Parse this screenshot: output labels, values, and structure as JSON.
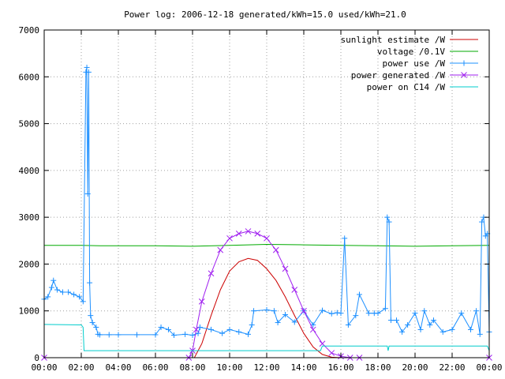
{
  "chart_data": {
    "type": "line",
    "title": "Power log: 2006-12-18 generated/kWh=15.0 used/kWh=21.0",
    "xlabel": "",
    "ylabel": "",
    "xlim": [
      0,
      24
    ],
    "ylim": [
      0,
      7000
    ],
    "x_ticks": [
      "00:00",
      "02:00",
      "04:00",
      "06:00",
      "08:00",
      "10:00",
      "12:00",
      "14:00",
      "16:00",
      "18:00",
      "20:00",
      "22:00",
      "00:00"
    ],
    "y_ticks": [
      "0",
      "1000",
      "2000",
      "3000",
      "4000",
      "5000",
      "6000",
      "7000"
    ],
    "grid": true,
    "legend_position": "top-right",
    "series": [
      {
        "name": "sunlight estimate /W",
        "color": "#cc0000",
        "marker": "none",
        "x": [
          8.1,
          8.5,
          9.0,
          9.5,
          10.0,
          10.5,
          11.0,
          11.5,
          12.0,
          12.5,
          13.0,
          13.5,
          14.0,
          14.5,
          15.0,
          15.5,
          16.0
        ],
        "y": [
          0,
          300,
          900,
          1450,
          1850,
          2050,
          2120,
          2080,
          1900,
          1650,
          1300,
          900,
          520,
          230,
          70,
          10,
          0
        ]
      },
      {
        "name": "voltage /0.1V",
        "color": "#00aa00",
        "marker": "none",
        "x": [
          0.0,
          2.0,
          3.0,
          6.0,
          8.0,
          10.0,
          12.0,
          14.0,
          16.0,
          18.0,
          20.0,
          22.0,
          24.0
        ],
        "y": [
          2400,
          2400,
          2390,
          2390,
          2380,
          2400,
          2420,
          2410,
          2400,
          2390,
          2380,
          2390,
          2400
        ]
      },
      {
        "name": "power use /W",
        "color": "#1e90ff",
        "marker": "plus",
        "x": [
          0.0,
          0.2,
          0.4,
          0.5,
          0.7,
          1.0,
          1.3,
          1.6,
          1.9,
          2.1,
          2.25,
          2.3,
          2.35,
          2.4,
          2.45,
          2.5,
          2.6,
          2.8,
          2.9,
          3.0,
          3.5,
          4.0,
          5.0,
          6.0,
          6.3,
          6.7,
          7.0,
          7.6,
          8.0,
          8.3,
          8.4,
          9.0,
          9.6,
          10.0,
          10.5,
          11.0,
          11.2,
          11.3,
          12.0,
          12.4,
          12.6,
          13.0,
          13.5,
          14.0,
          14.5,
          15.0,
          15.5,
          15.8,
          16.0,
          16.2,
          16.4,
          16.8,
          17.0,
          17.5,
          17.8,
          18.0,
          18.4,
          18.5,
          18.6,
          18.7,
          19.0,
          19.3,
          19.6,
          20.0,
          20.3,
          20.5,
          20.8,
          21.0,
          21.5,
          22.0,
          22.5,
          23.0,
          23.3,
          23.5,
          23.6,
          23.7,
          23.8,
          23.9,
          24.0
        ],
        "y": [
          1250,
          1300,
          1500,
          1650,
          1450,
          1400,
          1400,
          1350,
          1300,
          1200,
          6100,
          6200,
          3500,
          6100,
          1600,
          900,
          750,
          650,
          500,
          490,
          490,
          490,
          490,
          490,
          650,
          600,
          480,
          500,
          480,
          520,
          650,
          600,
          520,
          600,
          550,
          500,
          700,
          1000,
          1020,
          1000,
          750,
          920,
          760,
          1000,
          700,
          1010,
          940,
          960,
          950,
          2550,
          700,
          900,
          1350,
          950,
          950,
          950,
          1050,
          3000,
          2900,
          800,
          800,
          550,
          700,
          950,
          600,
          1000,
          700,
          800,
          550,
          600,
          950,
          600,
          1000,
          500,
          2900,
          3000,
          2600,
          2650,
          550
        ]
      },
      {
        "name": "power generated /W",
        "color": "#a020f0",
        "marker": "cross",
        "x": [
          0.0,
          7.8,
          8.0,
          8.2,
          8.5,
          9.0,
          9.5,
          10.0,
          10.5,
          11.0,
          11.5,
          12.0,
          12.5,
          13.0,
          13.5,
          14.0,
          14.5,
          15.0,
          15.5,
          16.0,
          16.5,
          17.0,
          24.0
        ],
        "y": [
          0,
          0,
          150,
          600,
          1200,
          1800,
          2300,
          2550,
          2650,
          2700,
          2650,
          2550,
          2300,
          1900,
          1450,
          1000,
          600,
          300,
          100,
          30,
          0,
          0,
          0
        ]
      },
      {
        "name": "power on C14 /W",
        "color": "#00cccc",
        "marker": "none",
        "x": [
          0.0,
          2.0,
          2.1,
          2.15,
          6.0,
          8.0,
          10.0,
          12.0,
          14.0,
          14.9,
          15.0,
          18.0,
          18.5,
          18.55,
          18.6,
          22.0,
          23.9,
          24.0
        ],
        "y": [
          710,
          700,
          650,
          150,
          150,
          150,
          150,
          150,
          150,
          150,
          250,
          250,
          250,
          150,
          250,
          250,
          250,
          150
        ]
      }
    ]
  }
}
